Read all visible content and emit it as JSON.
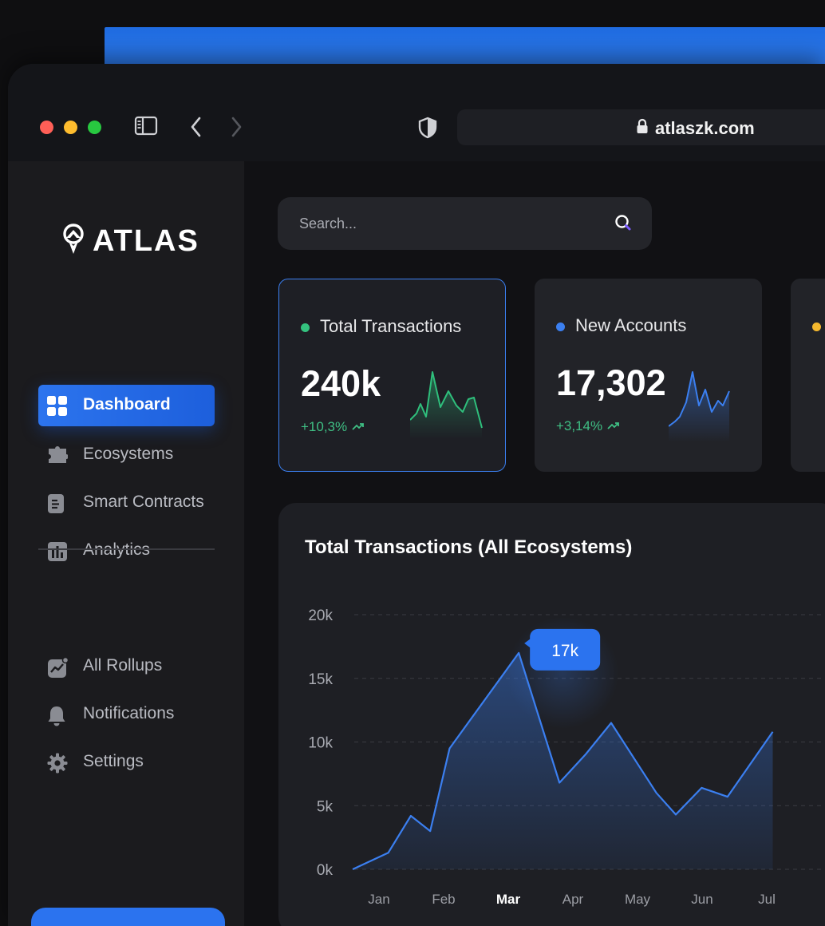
{
  "browser": {
    "url": "atlaszk.com",
    "traffic_lights": {
      "close": "#ff5f57",
      "minimize": "#febc2e",
      "zoom": "#28c840"
    }
  },
  "sidebar": {
    "logo_text": "ATLAS",
    "items": [
      {
        "label": "Dashboard",
        "icon": "grid-icon",
        "active": true
      },
      {
        "label": "Ecosystems",
        "icon": "puzzle-icon",
        "active": false
      },
      {
        "label": "Smart Contracts",
        "icon": "document-icon",
        "active": false
      },
      {
        "label": "Analytics",
        "icon": "bar-chart-icon",
        "active": false
      }
    ],
    "secondary_items": [
      {
        "label": "All Rollups",
        "icon": "trend-chart-icon"
      },
      {
        "label": "Notifications",
        "icon": "bell-icon"
      },
      {
        "label": "Settings",
        "icon": "gear-icon"
      }
    ]
  },
  "search": {
    "placeholder": "Search..."
  },
  "stats": [
    {
      "title": "Total Transactions",
      "value": "240k",
      "change": "+10,3%",
      "dot_color": "#34c27f",
      "spark_color": "#2fbf7c"
    },
    {
      "title": "New Accounts",
      "value": "17,302",
      "change": "+3,14%",
      "dot_color": "#3b7ff0",
      "spark_color": "#3b7ff0"
    },
    {
      "dot_color": "#f5b82e"
    }
  ],
  "chart_data": {
    "type": "area",
    "title": "Total Transactions (All Ecosystems)",
    "categories": [
      "Jan",
      "Feb",
      "Mar",
      "Apr",
      "May",
      "Jun",
      "Jul"
    ],
    "highlight_category": "Mar",
    "yticks": [
      "0k",
      "5k",
      "10k",
      "15k",
      "20k"
    ],
    "ylim": [
      0,
      20000
    ],
    "x": [
      0.0,
      0.55,
      0.9,
      1.2,
      1.5,
      2.57,
      3.2,
      3.6,
      4.0,
      4.7,
      5.0,
      5.4,
      5.8,
      6.5
    ],
    "y": [
      0,
      1300,
      4200,
      3000,
      9500,
      17000,
      6800,
      9000,
      11500,
      6000,
      4300,
      6400,
      5700,
      10800
    ],
    "tooltip": {
      "label": "17k"
    },
    "color": "#3b7ff0",
    "grid": true
  }
}
